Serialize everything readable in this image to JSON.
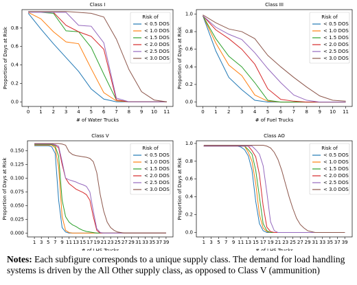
{
  "chart_data": [
    {
      "type": "line",
      "title": "Class I",
      "x_label": "# of Water Trucks",
      "y_label": "Proportion of Days at Risk",
      "x": [
        0,
        1,
        2,
        3,
        4,
        5,
        6,
        7,
        8,
        9,
        10,
        11
      ],
      "xlim": [
        -0.5,
        11.5
      ],
      "xticks": [
        0,
        1,
        2,
        3,
        4,
        5,
        6,
        7,
        8,
        9,
        10,
        11
      ],
      "ylim": [
        -0.05,
        1.0
      ],
      "yticks": [
        {
          "value": 0,
          "label": "0.0"
        },
        0.2,
        0.4,
        0.6,
        0.8
      ],
      "legend": "upper right",
      "legend_title": "Risk of",
      "series": [
        {
          "name": "< 0.5 DOS",
          "color": "#1f77b4",
          "values": [
            0.96,
            0.79,
            0.63,
            0.48,
            0.33,
            0.14,
            0.03,
            0,
            0,
            0,
            0,
            0
          ]
        },
        {
          "name": "< 1.0 DOS",
          "color": "#ff7f0e",
          "values": [
            0.97,
            0.9,
            0.76,
            0.65,
            0.63,
            0.36,
            0.1,
            0.01,
            0,
            0,
            0,
            0
          ]
        },
        {
          "name": "< 1.5 DOS",
          "color": "#2ca02c",
          "values": [
            0.97,
            0.97,
            0.96,
            0.77,
            0.76,
            0.59,
            0.3,
            0.02,
            0,
            0,
            0,
            0
          ]
        },
        {
          "name": "< 2.0 DOS",
          "color": "#d62728",
          "values": [
            0.97,
            0.97,
            0.97,
            0.83,
            0.76,
            0.71,
            0.57,
            0.02,
            0,
            0,
            0,
            0
          ]
        },
        {
          "name": "< 2.5 DOS",
          "color": "#9467bd",
          "values": [
            0.97,
            0.97,
            0.97,
            0.97,
            0.83,
            0.82,
            0.64,
            0.04,
            0,
            0,
            0,
            0
          ]
        },
        {
          "name": "< 3.0 DOS",
          "color": "#8c564b",
          "values": [
            0.98,
            0.98,
            0.98,
            0.98,
            0.97,
            0.96,
            0.92,
            0.68,
            0.35,
            0.11,
            0.02,
            0
          ]
        }
      ]
    },
    {
      "type": "line",
      "title": "Class III",
      "x_label": "# of Fuel Trucks",
      "y_label": "Proportion of Days at Risk",
      "x": [
        0,
        1,
        2,
        3,
        4,
        5,
        6,
        7,
        8,
        9,
        10,
        11
      ],
      "xlim": [
        -0.5,
        11.5
      ],
      "xticks": [
        0,
        1,
        2,
        3,
        4,
        5,
        6,
        7,
        8,
        9,
        10,
        11
      ],
      "ylim": [
        -0.05,
        1.05
      ],
      "yticks": [
        {
          "value": 0,
          "label": "0.0"
        },
        0.2,
        0.4,
        0.6,
        0.8,
        {
          "value": 1,
          "label": "1.0"
        }
      ],
      "legend": "upper right",
      "legend_title": "Risk of",
      "series": [
        {
          "name": "< 0.5 DOS",
          "color": "#1f77b4",
          "values": [
            0.98,
            0.58,
            0.28,
            0.14,
            0.02,
            0,
            0,
            0,
            0,
            0,
            0,
            0
          ]
        },
        {
          "name": "< 1.0 DOS",
          "color": "#ff7f0e",
          "values": [
            0.98,
            0.67,
            0.42,
            0.3,
            0.08,
            0.01,
            0,
            0,
            0,
            0,
            0,
            0
          ]
        },
        {
          "name": "< 1.5 DOS",
          "color": "#2ca02c",
          "values": [
            0.98,
            0.72,
            0.52,
            0.4,
            0.22,
            0.02,
            0,
            0,
            0,
            0,
            0,
            0
          ]
        },
        {
          "name": "< 2.0 DOS",
          "color": "#d62728",
          "values": [
            0.98,
            0.82,
            0.72,
            0.6,
            0.43,
            0.15,
            0.03,
            0.01,
            0,
            0,
            0,
            0
          ]
        },
        {
          "name": "< 2.5 DOS",
          "color": "#9467bd",
          "values": [
            0.98,
            0.85,
            0.77,
            0.71,
            0.56,
            0.38,
            0.22,
            0.08,
            0.02,
            0,
            0,
            0
          ]
        },
        {
          "name": "< 3.0 DOS",
          "color": "#8c564b",
          "values": [
            0.99,
            0.9,
            0.83,
            0.8,
            0.72,
            0.53,
            0.4,
            0.28,
            0.17,
            0.07,
            0.02,
            0.01
          ]
        }
      ]
    },
    {
      "type": "line",
      "title": "Class V",
      "x_label": "# of LHS Trucks",
      "y_label": "Proportion of Days at Risk",
      "x": [
        1,
        2,
        3,
        4,
        5,
        6,
        7,
        8,
        9,
        10,
        11,
        12,
        13,
        14,
        15,
        16,
        17,
        18,
        19,
        20,
        21,
        22,
        23,
        24,
        25,
        26,
        27,
        28,
        29,
        30,
        31,
        32,
        33,
        34,
        35,
        36,
        37,
        38,
        39
      ],
      "xlim": [
        -1,
        41
      ],
      "xticks": [
        1,
        3,
        5,
        7,
        9,
        11,
        13,
        15,
        17,
        19,
        21,
        23,
        25,
        27,
        29,
        31,
        33,
        35,
        37,
        39
      ],
      "ylim": [
        -0.007,
        0.168
      ],
      "yticks": [
        {
          "value": 0,
          "label": "0.000"
        },
        0.025,
        {
          "value": 0.05,
          "label": "0.050"
        },
        0.075,
        {
          "value": 0.1,
          "label": "0.100"
        },
        0.125,
        {
          "value": 0.15,
          "label": "0.150"
        }
      ],
      "legend": "upper right",
      "legend_title": "Risk of",
      "series": [
        {
          "name": "< 0.5 DOS",
          "color": "#1f77b4",
          "values": [
            0.159,
            0.159,
            0.159,
            0.159,
            0.159,
            0.157,
            0.145,
            0.06,
            0.01,
            0.002,
            0,
            0,
            0,
            0,
            0,
            0,
            0,
            0,
            0,
            0,
            0,
            0,
            0,
            0,
            0,
            0,
            0,
            0,
            0,
            0,
            0,
            0,
            0,
            0,
            0,
            0,
            0,
            0,
            0
          ]
        },
        {
          "name": "< 1.0 DOS",
          "color": "#ff7f0e",
          "values": [
            0.16,
            0.16,
            0.16,
            0.16,
            0.16,
            0.16,
            0.155,
            0.12,
            0.03,
            0.005,
            0.001,
            0,
            0,
            0,
            0,
            0,
            0,
            0,
            0,
            0,
            0,
            0,
            0,
            0,
            0,
            0,
            0,
            0,
            0,
            0,
            0,
            0,
            0,
            0,
            0,
            0,
            0,
            0,
            0
          ]
        },
        {
          "name": "< 1.5 DOS",
          "color": "#2ca02c",
          "values": [
            0.161,
            0.161,
            0.161,
            0.161,
            0.161,
            0.161,
            0.158,
            0.14,
            0.06,
            0.03,
            0.02,
            0.015,
            0.012,
            0.008,
            0.005,
            0.003,
            0.002,
            0.001,
            0,
            0,
            0,
            0,
            0,
            0,
            0,
            0,
            0,
            0,
            0,
            0,
            0,
            0,
            0,
            0,
            0,
            0,
            0,
            0,
            0
          ]
        },
        {
          "name": "< 2.0 DOS",
          "color": "#d62728",
          "values": [
            0.162,
            0.162,
            0.162,
            0.162,
            0.162,
            0.162,
            0.16,
            0.155,
            0.125,
            0.1,
            0.09,
            0.085,
            0.08,
            0.077,
            0.074,
            0.07,
            0.06,
            0.03,
            0.005,
            0,
            0,
            0,
            0,
            0,
            0,
            0,
            0,
            0,
            0,
            0,
            0,
            0,
            0,
            0,
            0,
            0,
            0,
            0,
            0
          ]
        },
        {
          "name": "< 2.5 DOS",
          "color": "#9467bd",
          "values": [
            0.162,
            0.162,
            0.162,
            0.162,
            0.162,
            0.162,
            0.161,
            0.158,
            0.13,
            0.1,
            0.097,
            0.095,
            0.093,
            0.09,
            0.088,
            0.085,
            0.075,
            0.04,
            0.008,
            0.001,
            0,
            0,
            0,
            0,
            0,
            0,
            0,
            0,
            0,
            0,
            0,
            0,
            0,
            0,
            0,
            0,
            0,
            0,
            0
          ]
        },
        {
          "name": "< 3.0 DOS",
          "color": "#8c564b",
          "values": [
            0.163,
            0.163,
            0.163,
            0.163,
            0.163,
            0.163,
            0.163,
            0.163,
            0.162,
            0.16,
            0.148,
            0.143,
            0.141,
            0.14,
            0.139,
            0.138,
            0.136,
            0.13,
            0.11,
            0.07,
            0.04,
            0.02,
            0.01,
            0.005,
            0.002,
            0.001,
            0,
            0,
            0,
            0,
            0,
            0,
            0,
            0,
            0,
            0,
            0,
            0,
            0
          ]
        }
      ]
    },
    {
      "type": "line",
      "title": "Class AO",
      "x_label": "# of LHS Trucks",
      "y_label": "Proportion of Days at Risk",
      "x": [
        1,
        2,
        3,
        4,
        5,
        6,
        7,
        8,
        9,
        10,
        11,
        12,
        13,
        14,
        15,
        16,
        17,
        18,
        19,
        20,
        21,
        22,
        23,
        24,
        25,
        26,
        27,
        28,
        29,
        30,
        31,
        32,
        33,
        34,
        35,
        36,
        37,
        38,
        39
      ],
      "xlim": [
        -1,
        41
      ],
      "xticks": [
        1,
        3,
        5,
        7,
        9,
        11,
        13,
        15,
        17,
        19,
        21,
        23,
        25,
        27,
        29,
        31,
        33,
        35,
        37,
        39
      ],
      "ylim": [
        -0.05,
        1.03
      ],
      "yticks": [
        {
          "value": 0,
          "label": "0.0"
        },
        0.2,
        0.4,
        0.6,
        0.8,
        {
          "value": 1,
          "label": "1.0"
        }
      ],
      "legend": "upper right",
      "legend_title": "Risk of",
      "series": [
        {
          "name": "< 0.5 DOS",
          "color": "#1f77b4",
          "values": [
            0.97,
            0.97,
            0.97,
            0.97,
            0.97,
            0.97,
            0.97,
            0.97,
            0.97,
            0.97,
            0.96,
            0.93,
            0.86,
            0.7,
            0.35,
            0.1,
            0.02,
            0,
            0,
            0,
            0,
            0,
            0,
            0,
            0,
            0,
            0,
            0,
            0,
            0,
            0,
            0,
            0,
            0,
            0,
            0,
            0,
            0,
            0
          ]
        },
        {
          "name": "< 1.0 DOS",
          "color": "#ff7f0e",
          "values": [
            0.97,
            0.97,
            0.97,
            0.97,
            0.97,
            0.97,
            0.97,
            0.97,
            0.97,
            0.97,
            0.97,
            0.97,
            0.9,
            0.8,
            0.55,
            0.2,
            0.05,
            0.01,
            0,
            0,
            0,
            0,
            0,
            0,
            0,
            0,
            0,
            0,
            0,
            0,
            0,
            0,
            0,
            0,
            0,
            0,
            0,
            0,
            0
          ]
        },
        {
          "name": "< 1.5 DOS",
          "color": "#2ca02c",
          "values": [
            0.97,
            0.97,
            0.97,
            0.97,
            0.97,
            0.97,
            0.97,
            0.97,
            0.97,
            0.97,
            0.97,
            0.97,
            0.93,
            0.88,
            0.7,
            0.4,
            0.1,
            0.02,
            0,
            0,
            0,
            0,
            0,
            0,
            0,
            0,
            0,
            0,
            0,
            0,
            0,
            0,
            0,
            0,
            0,
            0,
            0,
            0,
            0
          ]
        },
        {
          "name": "< 2.0 DOS",
          "color": "#d62728",
          "values": [
            0.97,
            0.97,
            0.97,
            0.97,
            0.97,
            0.97,
            0.97,
            0.97,
            0.97,
            0.97,
            0.97,
            0.97,
            0.97,
            0.92,
            0.85,
            0.65,
            0.3,
            0.06,
            0.01,
            0,
            0,
            0,
            0,
            0,
            0,
            0,
            0,
            0,
            0,
            0,
            0,
            0,
            0,
            0,
            0,
            0,
            0,
            0,
            0
          ]
        },
        {
          "name": "< 2.5 DOS",
          "color": "#9467bd",
          "values": [
            0.97,
            0.97,
            0.97,
            0.97,
            0.97,
            0.97,
            0.97,
            0.97,
            0.97,
            0.97,
            0.97,
            0.97,
            0.97,
            0.97,
            0.93,
            0.88,
            0.75,
            0.45,
            0.12,
            0.02,
            0,
            0,
            0,
            0,
            0,
            0,
            0,
            0,
            0,
            0,
            0,
            0,
            0,
            0,
            0,
            0,
            0,
            0,
            0
          ]
        },
        {
          "name": "< 3.0 DOS",
          "color": "#8c564b",
          "values": [
            0.98,
            0.98,
            0.98,
            0.98,
            0.98,
            0.98,
            0.98,
            0.98,
            0.98,
            0.98,
            0.98,
            0.98,
            0.98,
            0.98,
            0.98,
            0.98,
            0.98,
            0.97,
            0.95,
            0.9,
            0.82,
            0.7,
            0.55,
            0.4,
            0.27,
            0.16,
            0.09,
            0.05,
            0.02,
            0.01,
            0,
            0,
            0,
            0,
            0,
            0,
            0,
            0,
            0
          ]
        }
      ]
    }
  ],
  "notes": {
    "label": "Notes:",
    "text": "Each subfigure corresponds to a unique supply class. The demand for load handling systems is driven by the All Other supply class, as opposed to Class V (ammunition)"
  }
}
